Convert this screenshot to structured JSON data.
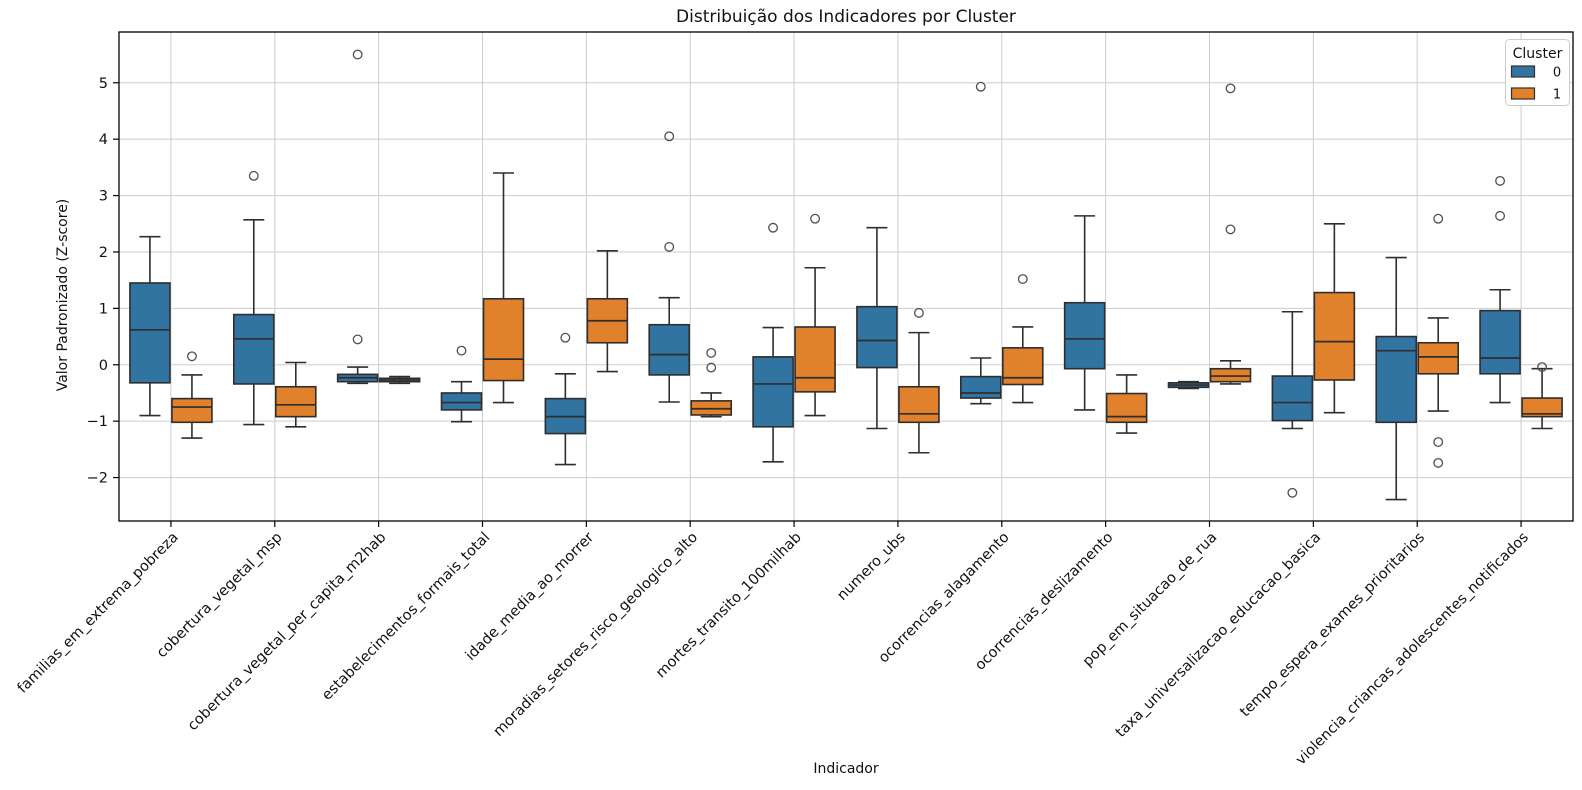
{
  "page": {
    "title": "Distribuição dos Indicadores por Cluster",
    "xlabel": "Indicador",
    "ylabel": "Valor Padronizado (Z-score)"
  },
  "chart_data": {
    "type": "boxplot",
    "title": "Distribuição dos Indicadores por Cluster",
    "xlabel": "Indicador",
    "ylabel": "Valor Padronizado (Z-score)",
    "ylim": [
      -2.77,
      5.9
    ],
    "yticks": [
      5,
      4,
      3,
      2,
      1,
      0,
      -1,
      -2
    ],
    "grid": true,
    "legend": {
      "title": "Cluster",
      "position": "top-right",
      "entries": [
        {
          "label": "0",
          "color": "#3274a1"
        },
        {
          "label": "1",
          "color": "#e1812c"
        }
      ]
    },
    "categories": [
      "familias_em_extrema_pobreza",
      "cobertura_vegetal_msp",
      "cobertura_vegetal_per_capita_m2hab",
      "estabelecimentos_formais_total",
      "idade_media_ao_morrer",
      "moradias_setores_risco_geologico_alto",
      "mortes_transito_100milhab",
      "numero_ubs",
      "ocorrencias_alagamento",
      "ocorrencias_deslizamento",
      "pop_em_situacao_de_rua",
      "taxa_universalizacao_educacao_basica",
      "tempo_espera_exames_prioritarios",
      "violencia_criancas_adolescentes_notificados"
    ],
    "series": [
      {
        "name": "0",
        "color": "#3274a1",
        "boxes": [
          {
            "whislo": -0.9,
            "q1": -0.32,
            "med": 0.62,
            "q3": 1.45,
            "whishi": 2.27,
            "fliers": []
          },
          {
            "whislo": -1.06,
            "q1": -0.34,
            "med": 0.46,
            "q3": 0.89,
            "whishi": 2.57,
            "fliers": [
              3.35
            ]
          },
          {
            "whislo": -0.33,
            "q1": -0.3,
            "med": -0.23,
            "q3": -0.17,
            "whishi": -0.04,
            "fliers": [
              5.5,
              0.45
            ]
          },
          {
            "whislo": -1.01,
            "q1": -0.8,
            "med": -0.67,
            "q3": -0.5,
            "whishi": -0.3,
            "fliers": [
              0.25
            ]
          },
          {
            "whislo": -1.77,
            "q1": -1.22,
            "med": -0.92,
            "q3": -0.6,
            "whishi": -0.16,
            "fliers": [
              0.48
            ]
          },
          {
            "whislo": -0.66,
            "q1": -0.18,
            "med": 0.18,
            "q3": 0.71,
            "whishi": 1.19,
            "fliers": [
              4.05,
              2.09
            ]
          },
          {
            "whislo": -1.72,
            "q1": -1.1,
            "med": -0.34,
            "q3": 0.14,
            "whishi": 0.66,
            "fliers": [
              2.43
            ]
          },
          {
            "whislo": -1.13,
            "q1": -0.05,
            "med": 0.43,
            "q3": 1.03,
            "whishi": 2.43,
            "fliers": []
          },
          {
            "whislo": -0.69,
            "q1": -0.59,
            "med": -0.5,
            "q3": -0.21,
            "whishi": 0.12,
            "fliers": [
              4.93
            ]
          },
          {
            "whislo": -0.8,
            "q1": -0.07,
            "med": 0.46,
            "q3": 1.1,
            "whishi": 2.64,
            "fliers": []
          },
          {
            "whislo": -0.42,
            "q1": -0.4,
            "med": -0.36,
            "q3": -0.32,
            "whishi": -0.3,
            "fliers": []
          },
          {
            "whislo": -1.13,
            "q1": -0.99,
            "med": -0.67,
            "q3": -0.2,
            "whishi": 0.94,
            "fliers": [
              -2.27
            ]
          },
          {
            "whislo": -2.39,
            "q1": -1.02,
            "med": 0.25,
            "q3": 0.5,
            "whishi": 1.9,
            "fliers": []
          },
          {
            "whislo": -0.67,
            "q1": -0.16,
            "med": 0.12,
            "q3": 0.96,
            "whishi": 1.33,
            "fliers": [
              3.26,
              2.64
            ]
          }
        ]
      },
      {
        "name": "1",
        "color": "#e1812c",
        "boxes": [
          {
            "whislo": -1.3,
            "q1": -1.02,
            "med": -0.75,
            "q3": -0.6,
            "whishi": -0.18,
            "fliers": [
              0.15
            ]
          },
          {
            "whislo": -1.1,
            "q1": -0.92,
            "med": -0.71,
            "q3": -0.39,
            "whishi": 0.04,
            "fliers": []
          },
          {
            "whislo": -0.33,
            "q1": -0.3,
            "med": -0.27,
            "q3": -0.24,
            "whishi": -0.21,
            "fliers": []
          },
          {
            "whislo": -0.67,
            "q1": -0.28,
            "med": 0.1,
            "q3": 1.17,
            "whishi": 3.4,
            "fliers": []
          },
          {
            "whislo": -0.12,
            "q1": 0.39,
            "med": 0.78,
            "q3": 1.17,
            "whishi": 2.02,
            "fliers": []
          },
          {
            "whislo": -0.92,
            "q1": -0.89,
            "med": -0.78,
            "q3": -0.64,
            "whishi": -0.5,
            "fliers": [
              0.21,
              -0.05
            ]
          },
          {
            "whislo": -0.9,
            "q1": -0.48,
            "med": -0.23,
            "q3": 0.67,
            "whishi": 1.72,
            "fliers": [
              2.59
            ]
          },
          {
            "whislo": -1.56,
            "q1": -1.02,
            "med": -0.87,
            "q3": -0.39,
            "whishi": 0.57,
            "fliers": [
              0.92
            ]
          },
          {
            "whislo": -0.67,
            "q1": -0.35,
            "med": -0.23,
            "q3": 0.3,
            "whishi": 0.67,
            "fliers": [
              1.52
            ]
          },
          {
            "whislo": -1.21,
            "q1": -1.02,
            "med": -0.92,
            "q3": -0.51,
            "whishi": -0.18,
            "fliers": []
          },
          {
            "whislo": -0.34,
            "q1": -0.3,
            "med": -0.2,
            "q3": -0.07,
            "whishi": 0.07,
            "fliers": [
              4.9,
              2.4
            ]
          },
          {
            "whislo": -0.85,
            "q1": -0.27,
            "med": 0.41,
            "q3": 1.28,
            "whishi": 2.5,
            "fliers": []
          },
          {
            "whislo": -0.82,
            "q1": -0.16,
            "med": 0.14,
            "q3": 0.39,
            "whishi": 0.83,
            "fliers": [
              2.59,
              -1.37,
              -1.74
            ]
          },
          {
            "whislo": -1.13,
            "q1": -0.92,
            "med": -0.87,
            "q3": -0.59,
            "whishi": -0.07,
            "fliers": [
              -0.04
            ]
          }
        ]
      }
    ]
  }
}
